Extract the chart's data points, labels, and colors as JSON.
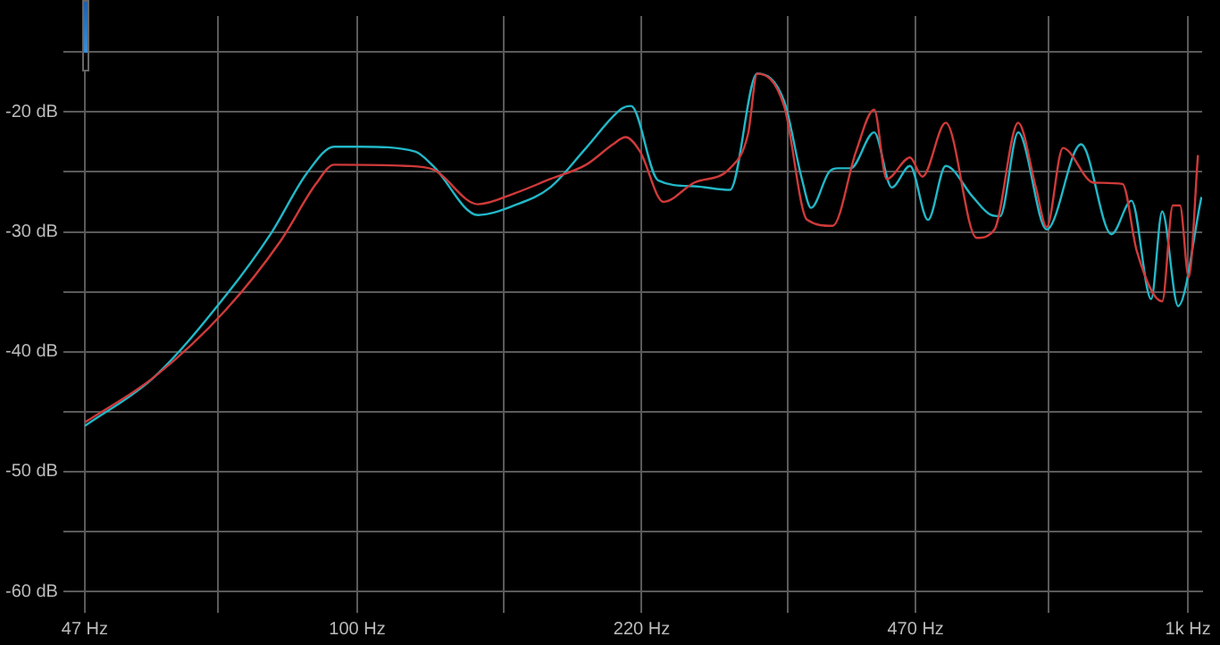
{
  "chart_data": {
    "type": "line",
    "log": "x",
    "grid": true,
    "legend": false,
    "marker": "none",
    "line_style": "solid",
    "xlim": [
      47,
      1040
    ],
    "xticks": [
      {
        "value": 47,
        "label": "47 Hz"
      },
      {
        "value": 68,
        "label": null
      },
      {
        "value": 100,
        "label": "100 Hz"
      },
      {
        "value": 150,
        "label": null
      },
      {
        "value": 220,
        "label": "220 Hz"
      },
      {
        "value": 330,
        "label": null
      },
      {
        "value": 470,
        "label": "470 Hz"
      },
      {
        "value": 680,
        "label": null
      },
      {
        "value": 1000,
        "label": "1k Hz"
      }
    ],
    "ylim": [
      -60,
      -12
    ],
    "yticks": [
      {
        "value": -60,
        "label": "-60 dB"
      },
      {
        "value": -55,
        "label": null
      },
      {
        "value": -50,
        "label": "-50 dB"
      },
      {
        "value": -45,
        "label": null
      },
      {
        "value": -40,
        "label": "-40 dB"
      },
      {
        "value": -35,
        "label": null
      },
      {
        "value": -30,
        "label": "-30 dB"
      },
      {
        "value": -25,
        "label": null
      },
      {
        "value": -20,
        "label": "-20 dB"
      },
      {
        "value": -15,
        "label": null
      }
    ],
    "series": [
      {
        "color": "#d03a3a",
        "x": [
          47,
          57,
          69.5,
          80.8,
          89.2,
          93.8,
          114.5,
          123.4,
          139.8,
          154.5,
          170.7,
          188.6,
          203.2,
          210.4,
          219,
          233.7,
          254.4,
          281,
          295.5,
          303,
          326.5,
          348,
          373.5,
          398.5,
          419,
          433.8,
          462.8,
          479,
          511,
          556.6,
          585,
          624.6,
          656,
          676,
          707,
          770,
          834,
          867.6,
          931,
          959,
          978,
          1002,
          1028
        ],
        "values": [
          -45.9,
          -42.1,
          -36.5,
          -30.8,
          -26.0,
          -24.4,
          -24.5,
          -24.8,
          -27.7,
          -26.8,
          -25.6,
          -24.4,
          -22.7,
          -22.1,
          -23.3,
          -27.5,
          -25.9,
          -24.7,
          -21.8,
          -16.8,
          -19.5,
          -29.0,
          -29.5,
          -23.3,
          -19.8,
          -25.6,
          -23.8,
          -25.4,
          -20.9,
          -30.5,
          -29.8,
          -20.9,
          -26.3,
          -29.6,
          -23.0,
          -25.9,
          -26.0,
          -31.6,
          -35.8,
          -27.8,
          -27.8,
          -33.8,
          -23.6
        ]
      },
      {
        "color": "#22b8c8",
        "x": [
          47,
          57,
          69.5,
          78.8,
          87,
          93.8,
          101,
          117.4,
          123.4,
          139.8,
          154.5,
          170.7,
          188.6,
          208.4,
          213.6,
          230.2,
          254.4,
          281,
          303,
          326.5,
          343,
          351.8,
          369.8,
          379,
          392.6,
          419,
          440,
          462.8,
          486.5,
          511,
          551,
          579.5,
          594,
          624.6,
          676,
          743.5,
          809,
          855,
          903,
          931,
          973,
          1038
        ],
        "values": [
          -46.2,
          -42.1,
          -35.3,
          -30.1,
          -25.1,
          -22.9,
          -22.9,
          -23.3,
          -24.5,
          -28.6,
          -27.8,
          -26.3,
          -23.0,
          -19.7,
          -19.5,
          -25.7,
          -26.2,
          -26.5,
          -16.8,
          -19.1,
          -25.6,
          -28.0,
          -25.0,
          -24.7,
          -24.7,
          -21.7,
          -26.3,
          -24.5,
          -29.0,
          -24.5,
          -27.1,
          -28.6,
          -28.7,
          -21.7,
          -29.8,
          -22.7,
          -30.2,
          -27.4,
          -35.6,
          -28.3,
          -36.2,
          -27.1
        ]
      }
    ]
  }
}
